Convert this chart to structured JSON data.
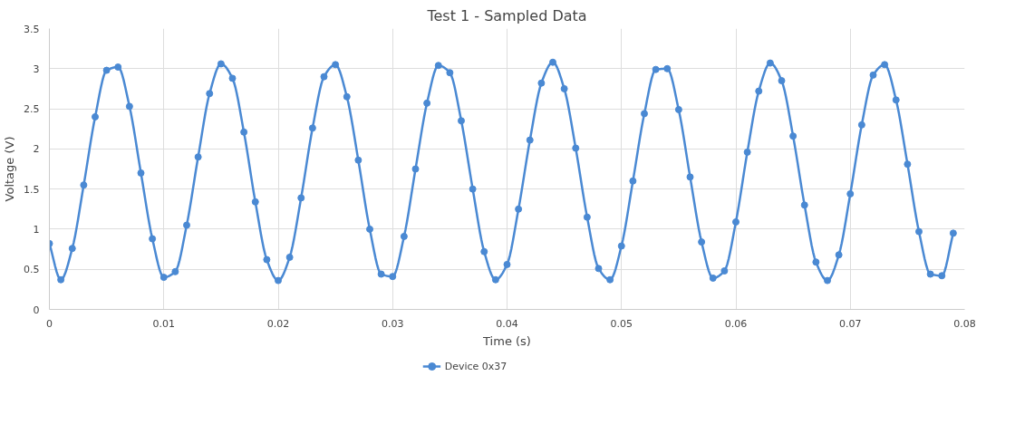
{
  "chart_data": {
    "type": "line",
    "title": "Test 1 - Sampled Data",
    "xlabel": "Time (s)",
    "ylabel": "Voltage (V)",
    "x": [
      0,
      0.001,
      0.002,
      0.003,
      0.004,
      0.005,
      0.006,
      0.007,
      0.008,
      0.009,
      0.01,
      0.011,
      0.012,
      0.013,
      0.014,
      0.015,
      0.016,
      0.017,
      0.018,
      0.019,
      0.02,
      0.021,
      0.022,
      0.023,
      0.024,
      0.025,
      0.026,
      0.027,
      0.028,
      0.029,
      0.03,
      0.031,
      0.032,
      0.033,
      0.034,
      0.035,
      0.036,
      0.037,
      0.038,
      0.039,
      0.04,
      0.041,
      0.042,
      0.043,
      0.044,
      0.045,
      0.046,
      0.047,
      0.048,
      0.049,
      0.05,
      0.051,
      0.052,
      0.053,
      0.054,
      0.055,
      0.056,
      0.057,
      0.058,
      0.059,
      0.06,
      0.061,
      0.062,
      0.063,
      0.064,
      0.065,
      0.066,
      0.067,
      0.068,
      0.069,
      0.07,
      0.071,
      0.072,
      0.073,
      0.074,
      0.075,
      0.076,
      0.077,
      0.078,
      0.079
    ],
    "series": [
      {
        "name": "Device 0x37",
        "color": "#4a89d3",
        "values": [
          0.82,
          0.37,
          0.76,
          1.55,
          2.4,
          2.98,
          3.02,
          2.53,
          1.7,
          0.88,
          0.4,
          0.47,
          1.05,
          1.9,
          2.69,
          3.06,
          2.88,
          2.21,
          1.34,
          0.62,
          0.36,
          0.65,
          1.39,
          2.26,
          2.9,
          3.05,
          2.65,
          1.86,
          1.0,
          0.44,
          0.41,
          0.91,
          1.75,
          2.57,
          3.04,
          2.95,
          2.35,
          1.5,
          0.72,
          0.37,
          0.56,
          1.25,
          2.11,
          2.82,
          3.08,
          2.75,
          2.01,
          1.15,
          0.51,
          0.37,
          0.79,
          1.6,
          2.44,
          2.99,
          3.0,
          2.49,
          1.65,
          0.84,
          0.39,
          0.48,
          1.09,
          1.96,
          2.72,
          3.07,
          2.85,
          2.16,
          1.3,
          0.59,
          0.36,
          0.68,
          1.44,
          2.3,
          2.92,
          3.05,
          2.61,
          1.81,
          0.97,
          0.44,
          0.42,
          0.95
        ]
      }
    ],
    "xlim": [
      0,
      0.08
    ],
    "xticks": [
      0,
      0.01,
      0.02,
      0.03,
      0.04,
      0.05,
      0.06,
      0.07,
      0.08
    ],
    "ylim": [
      0,
      3.5
    ],
    "yticks": [
      0,
      0.5,
      1,
      1.5,
      2,
      2.5,
      3,
      3.5
    ],
    "grid": true,
    "legend": "bottom",
    "marker": "circle",
    "line_style": "solid"
  }
}
